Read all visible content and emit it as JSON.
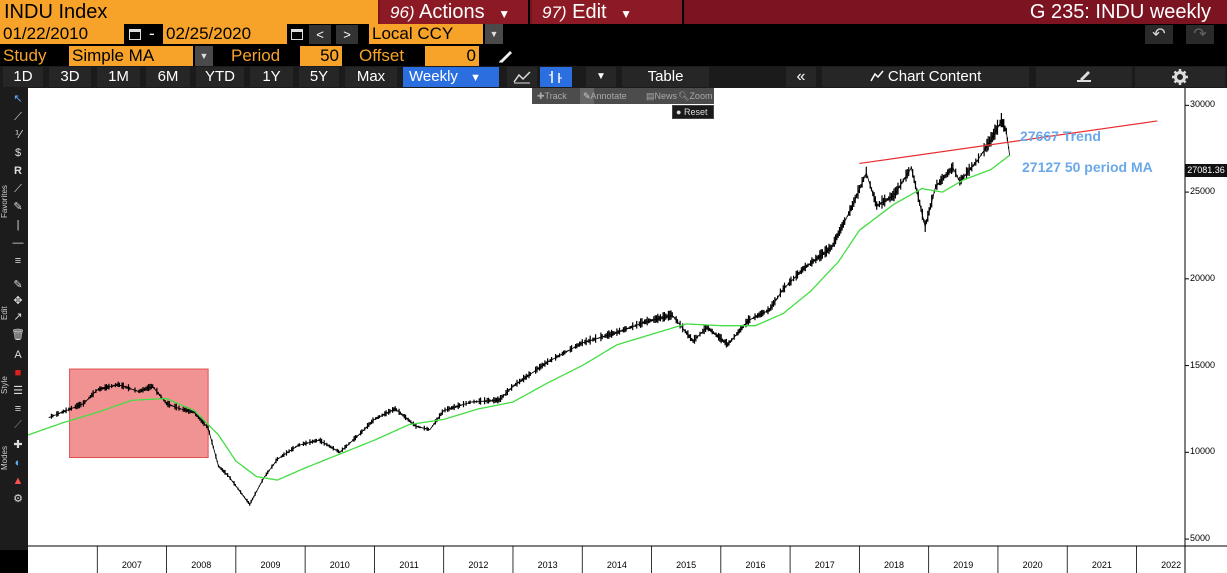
{
  "header": {
    "ticker": "INDU Index",
    "actions_num": "96)",
    "actions_label": "Actions",
    "edit_num": "97)",
    "edit_label": "Edit",
    "window_title": "G 235: INDU weekly"
  },
  "range": {
    "start_date": "01/22/2010",
    "separator": "-",
    "end_date": "02/25/2020",
    "prev": "<",
    "next": ">",
    "currency": "Local CCY"
  },
  "study": {
    "study_label": "Study",
    "study_value": "Simple MA",
    "period_label": "Period",
    "period_value": "50",
    "offset_label": "Offset",
    "offset_value": "0"
  },
  "toolbar": {
    "periods": [
      "1D",
      "3D",
      "1M",
      "6M",
      "YTD",
      "1Y",
      "5Y",
      "Max"
    ],
    "frequency": "Weekly",
    "table": "Table",
    "chart_content": "Chart Content"
  },
  "popup": {
    "track": "Track",
    "annotate": "Annotate",
    "news": "News",
    "zoom": "Zoom",
    "reset": "Reset"
  },
  "sidebar": {
    "favorites": "Favorites",
    "edit": "Edit",
    "style": "Style",
    "modes": "Modes"
  },
  "annotations": {
    "trend": "27667 Trend",
    "ma": "27127  50 period MA"
  },
  "colors": {
    "accent_orange": "#f7a32a",
    "header_red": "#7b1420",
    "price_line": "#000000",
    "ma_line": "#44dd44",
    "trend_line": "#e83030",
    "highlight_box": "#f08080",
    "annotation_text": "#6aa8e8",
    "active_blue": "#2a6ee0"
  },
  "chart_data": {
    "type": "line",
    "x_ticks": [
      "2007",
      "2008",
      "2009",
      "2010",
      "2011",
      "2012",
      "2013",
      "2014",
      "2015",
      "2016",
      "2017",
      "2018",
      "2019",
      "2020",
      "2021",
      "2022"
    ],
    "y_ticks": [
      "30000",
      "25000",
      "20000",
      "15000",
      "10000",
      "5000"
    ],
    "last_value_label": "27081.36",
    "ylim": [
      4600,
      31000
    ],
    "series": [
      {
        "key": "price",
        "points": [
          [
            2006.3,
            12000
          ],
          [
            2006.8,
            12800
          ],
          [
            2007.0,
            13600
          ],
          [
            2007.3,
            13900
          ],
          [
            2007.6,
            13500
          ],
          [
            2007.8,
            13800
          ],
          [
            2008.0,
            12800
          ],
          [
            2008.2,
            12500
          ],
          [
            2008.4,
            12300
          ],
          [
            2008.6,
            11400
          ],
          [
            2008.75,
            9200
          ],
          [
            2008.9,
            8600
          ],
          [
            2009.2,
            7000
          ],
          [
            2009.4,
            8500
          ],
          [
            2009.6,
            9600
          ],
          [
            2009.9,
            10400
          ],
          [
            2010.2,
            10700
          ],
          [
            2010.5,
            10000
          ],
          [
            2010.8,
            11100
          ],
          [
            2011.0,
            11900
          ],
          [
            2011.3,
            12500
          ],
          [
            2011.6,
            11500
          ],
          [
            2011.8,
            11300
          ],
          [
            2012.0,
            12400
          ],
          [
            2012.4,
            12900
          ],
          [
            2012.8,
            13000
          ],
          [
            2013.0,
            13800
          ],
          [
            2013.5,
            15200
          ],
          [
            2014.0,
            16300
          ],
          [
            2014.5,
            16900
          ],
          [
            2014.9,
            17500
          ],
          [
            2015.3,
            17900
          ],
          [
            2015.6,
            16400
          ],
          [
            2015.8,
            17200
          ],
          [
            2016.1,
            16200
          ],
          [
            2016.4,
            17600
          ],
          [
            2016.7,
            18200
          ],
          [
            2016.9,
            19400
          ],
          [
            2017.2,
            20600
          ],
          [
            2017.6,
            21800
          ],
          [
            2017.9,
            24200
          ],
          [
            2018.1,
            26100
          ],
          [
            2018.25,
            24200
          ],
          [
            2018.5,
            24800
          ],
          [
            2018.75,
            26400
          ],
          [
            2018.95,
            23000
          ],
          [
            2019.1,
            25300
          ],
          [
            2019.35,
            26400
          ],
          [
            2019.45,
            25600
          ],
          [
            2019.7,
            26800
          ],
          [
            2019.9,
            28000
          ],
          [
            2020.05,
            29100
          ],
          [
            2020.12,
            28500
          ],
          [
            2020.17,
            27081
          ]
        ]
      },
      {
        "key": "ma",
        "label": "50 period MA",
        "points": [
          [
            2006.0,
            11000
          ],
          [
            2006.5,
            11700
          ],
          [
            2007.0,
            12300
          ],
          [
            2007.5,
            13000
          ],
          [
            2008.0,
            13100
          ],
          [
            2008.4,
            12400
          ],
          [
            2008.75,
            11000
          ],
          [
            2009.0,
            9500
          ],
          [
            2009.3,
            8600
          ],
          [
            2009.6,
            8400
          ],
          [
            2010.0,
            9100
          ],
          [
            2010.5,
            9900
          ],
          [
            2011.0,
            10700
          ],
          [
            2011.5,
            11600
          ],
          [
            2012.0,
            11900
          ],
          [
            2012.5,
            12500
          ],
          [
            2013.0,
            12900
          ],
          [
            2013.5,
            14000
          ],
          [
            2014.0,
            15000
          ],
          [
            2014.5,
            16200
          ],
          [
            2015.0,
            16800
          ],
          [
            2015.5,
            17400
          ],
          [
            2016.0,
            17300
          ],
          [
            2016.5,
            17300
          ],
          [
            2016.9,
            18000
          ],
          [
            2017.3,
            19300
          ],
          [
            2017.7,
            21000
          ],
          [
            2018.0,
            22800
          ],
          [
            2018.5,
            24300
          ],
          [
            2018.9,
            25200
          ],
          [
            2019.2,
            25000
          ],
          [
            2019.5,
            25700
          ],
          [
            2019.9,
            26300
          ],
          [
            2020.17,
            27127
          ]
        ]
      },
      {
        "key": "trend",
        "label": "Trend",
        "points": [
          [
            2018.0,
            26650
          ],
          [
            2022.3,
            29100
          ]
        ]
      }
    ],
    "highlight_region": {
      "x_range": [
        2006.6,
        2008.6
      ],
      "y_range": [
        9700,
        14800
      ]
    }
  }
}
